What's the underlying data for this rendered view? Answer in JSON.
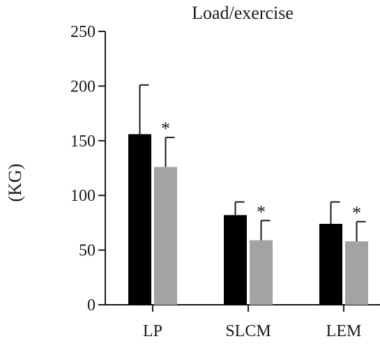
{
  "chart_data": {
    "type": "bar",
    "title": "Load/exercise",
    "ylabel": "(KG)",
    "xlabel": "",
    "ylim": [
      0,
      250
    ],
    "yticks": [
      0,
      50,
      100,
      150,
      200,
      250
    ],
    "categories": [
      "LP",
      "SLCM",
      "LEM"
    ],
    "series": [
      {
        "values": [
          156,
          82,
          74
        ],
        "errors": [
          45,
          12,
          20
        ],
        "color": "#000000"
      },
      {
        "values": [
          126,
          59,
          58
        ],
        "errors": [
          27,
          18,
          18
        ],
        "color": "#a3a3a6"
      }
    ],
    "annotations": [
      {
        "category": "LP",
        "series": 1,
        "text": "*"
      },
      {
        "category": "SLCM",
        "series": 1,
        "text": "*"
      },
      {
        "category": "LEM",
        "series": 1,
        "text": "*"
      }
    ],
    "grid": false,
    "legend": "none"
  }
}
